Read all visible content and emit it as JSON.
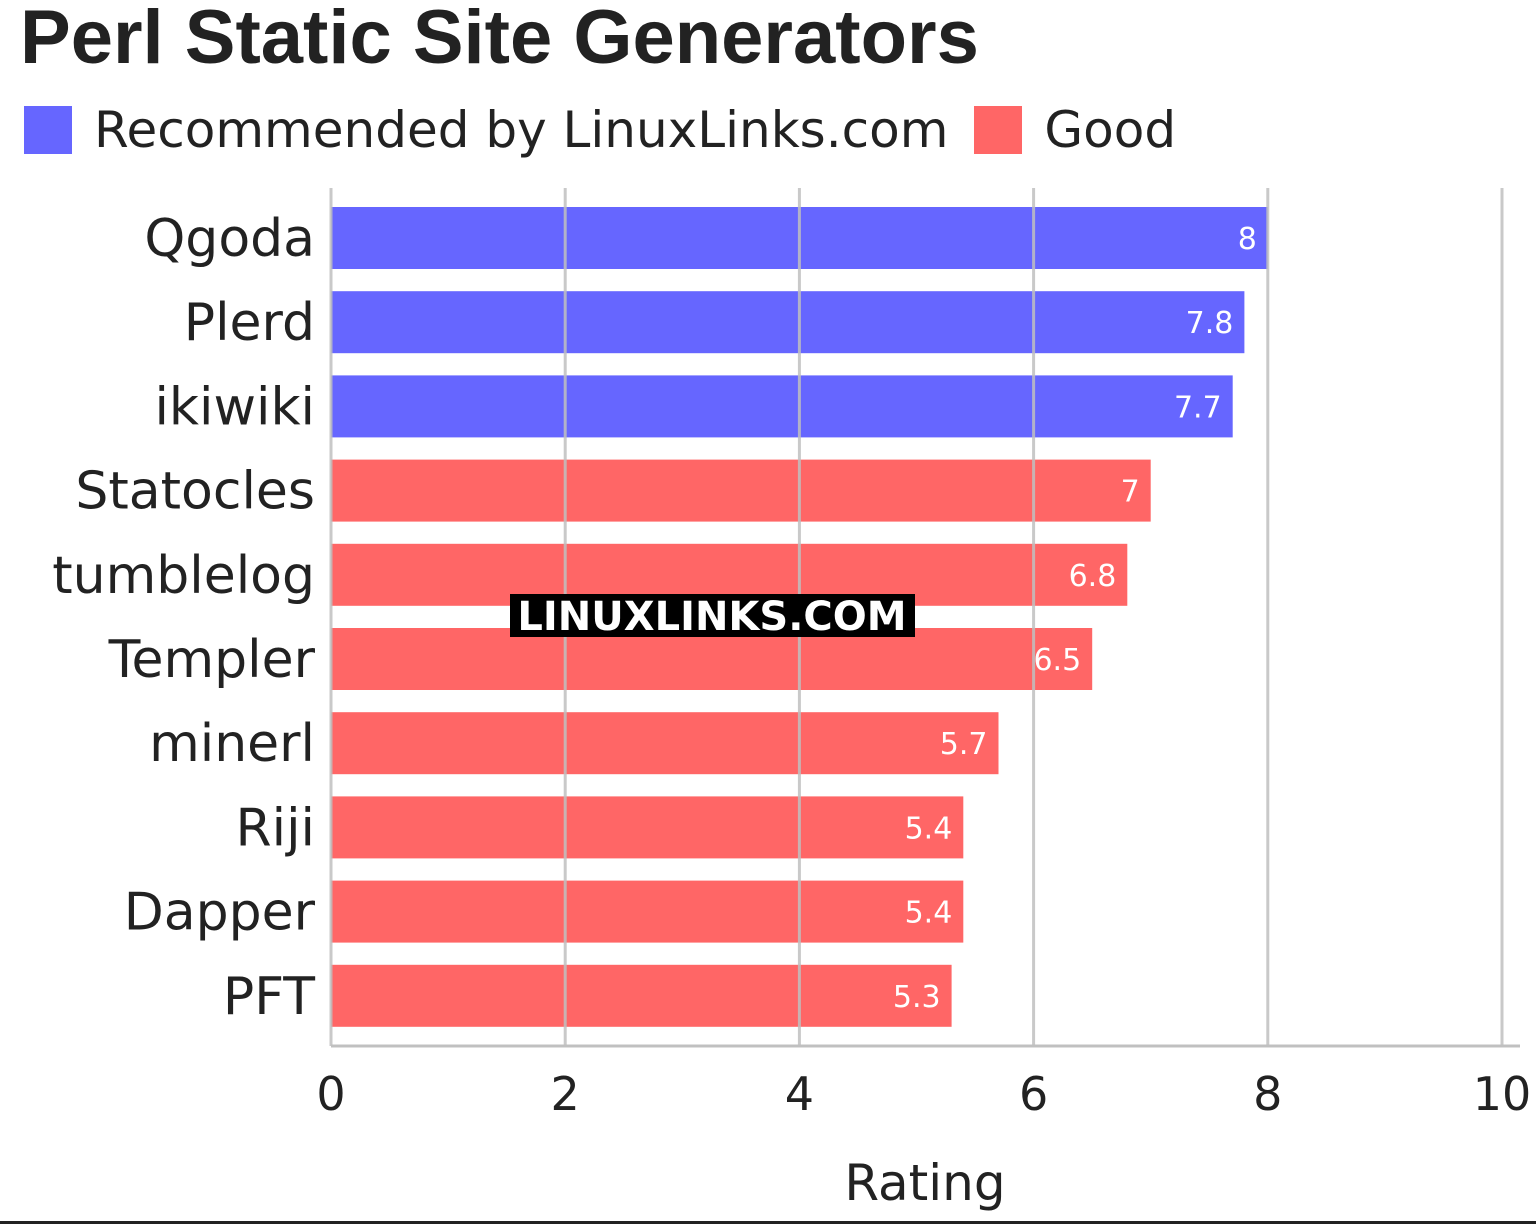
{
  "chart_data": {
    "type": "bar",
    "orientation": "horizontal",
    "title": "Perl Static Site Generators",
    "xlabel": "Rating",
    "ylabel": "",
    "xlim": [
      0,
      10
    ],
    "xticks": [
      0,
      2,
      4,
      6,
      8,
      10
    ],
    "grid": true,
    "legend_position": "top-left",
    "legend": [
      {
        "name": "Recommended by LinuxLinks.com",
        "color": "#6666ff"
      },
      {
        "name": "Good",
        "color": "#ff6666"
      }
    ],
    "categories": [
      "Qgoda",
      "Plerd",
      "ikiwiki",
      "Statocles",
      "tumblelog",
      "Templer",
      "minerl",
      "Riji",
      "Dapper",
      "PFT"
    ],
    "values": [
      8,
      7.8,
      7.7,
      7,
      6.8,
      6.5,
      5.7,
      5.4,
      5.4,
      5.3
    ],
    "value_labels": [
      "8",
      "7.8",
      "7.7",
      "7",
      "6.8",
      "6.5",
      "5.7",
      "5.4",
      "5.4",
      "5.3"
    ],
    "groups": [
      "Recommended by LinuxLinks.com",
      "Recommended by LinuxLinks.com",
      "Recommended by LinuxLinks.com",
      "Good",
      "Good",
      "Good",
      "Good",
      "Good",
      "Good",
      "Good"
    ],
    "annotations": [
      "LINUXLINKS.COM"
    ]
  },
  "colors": {
    "recommended": "#6666ff",
    "good": "#ff6666",
    "grid": "#c0c0c0",
    "text": "#222222",
    "watermark_bg": "#000000",
    "watermark_text": "#ffffff"
  }
}
